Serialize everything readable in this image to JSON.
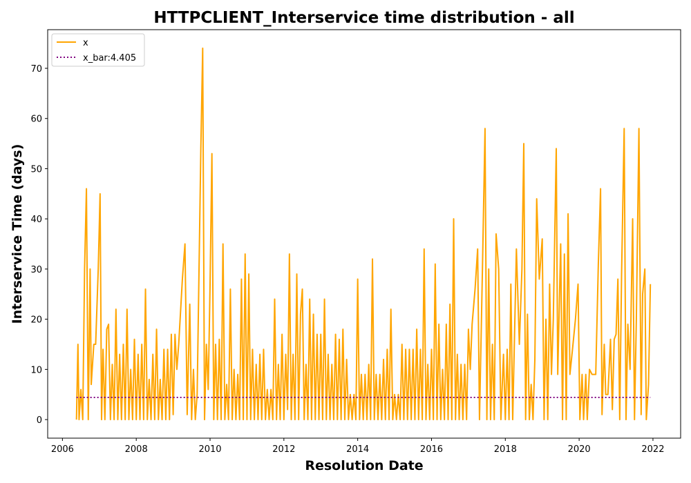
{
  "chart_data": {
    "type": "line",
    "title": "HTTPCLIENT_Interservice time distribution - all",
    "xlabel": "Resolution Date",
    "ylabel": "Interservice Time (days)",
    "xlim": [
      2005.6,
      2022.75
    ],
    "ylim": [
      -3.7,
      77.7
    ],
    "xticks": [
      2006,
      2008,
      2010,
      2012,
      2014,
      2016,
      2018,
      2020,
      2022
    ],
    "yticks": [
      0,
      10,
      20,
      30,
      40,
      50,
      60,
      70
    ],
    "grid": false,
    "legend_position": "upper-left",
    "series": [
      {
        "name": "x",
        "color": "#ffa500",
        "style": "solid",
        "points": [
          [
            2006.38,
            0
          ],
          [
            2006.42,
            15
          ],
          [
            2006.45,
            0
          ],
          [
            2006.5,
            6
          ],
          [
            2006.55,
            0
          ],
          [
            2006.6,
            30
          ],
          [
            2006.65,
            46
          ],
          [
            2006.7,
            0
          ],
          [
            2006.75,
            30
          ],
          [
            2006.78,
            7
          ],
          [
            2006.85,
            15
          ],
          [
            2006.9,
            15
          ],
          [
            2006.97,
            30
          ],
          [
            2007.02,
            45
          ],
          [
            2007.06,
            0
          ],
          [
            2007.1,
            14
          ],
          [
            2007.15,
            0
          ],
          [
            2007.2,
            18
          ],
          [
            2007.25,
            19
          ],
          [
            2007.3,
            0
          ],
          [
            2007.35,
            11
          ],
          [
            2007.4,
            0
          ],
          [
            2007.45,
            22
          ],
          [
            2007.5,
            0
          ],
          [
            2007.55,
            13
          ],
          [
            2007.6,
            0
          ],
          [
            2007.65,
            15
          ],
          [
            2007.7,
            0
          ],
          [
            2007.75,
            22
          ],
          [
            2007.8,
            0
          ],
          [
            2007.85,
            10
          ],
          [
            2007.9,
            0
          ],
          [
            2007.95,
            16
          ],
          [
            2008.0,
            0
          ],
          [
            2008.05,
            13
          ],
          [
            2008.1,
            0
          ],
          [
            2008.15,
            15
          ],
          [
            2008.2,
            0
          ],
          [
            2008.25,
            26
          ],
          [
            2008.3,
            0
          ],
          [
            2008.35,
            8
          ],
          [
            2008.4,
            0
          ],
          [
            2008.45,
            13
          ],
          [
            2008.5,
            0
          ],
          [
            2008.55,
            18
          ],
          [
            2008.6,
            0
          ],
          [
            2008.65,
            8
          ],
          [
            2008.7,
            0
          ],
          [
            2008.75,
            14
          ],
          [
            2008.8,
            0
          ],
          [
            2008.85,
            14
          ],
          [
            2008.9,
            0
          ],
          [
            2008.95,
            17
          ],
          [
            2009.0,
            1
          ],
          [
            2009.05,
            17
          ],
          [
            2009.1,
            10
          ],
          [
            2009.15,
            15
          ],
          [
            2009.25,
            28
          ],
          [
            2009.32,
            35
          ],
          [
            2009.38,
            1
          ],
          [
            2009.45,
            23
          ],
          [
            2009.5,
            0
          ],
          [
            2009.55,
            10
          ],
          [
            2009.6,
            0
          ],
          [
            2009.65,
            5
          ],
          [
            2009.75,
            54
          ],
          [
            2009.8,
            74
          ],
          [
            2009.85,
            0
          ],
          [
            2009.9,
            15
          ],
          [
            2009.95,
            6
          ],
          [
            2010.0,
            27
          ],
          [
            2010.05,
            53
          ],
          [
            2010.1,
            0
          ],
          [
            2010.15,
            15
          ],
          [
            2010.2,
            0
          ],
          [
            2010.25,
            16
          ],
          [
            2010.3,
            0
          ],
          [
            2010.35,
            35
          ],
          [
            2010.4,
            0
          ],
          [
            2010.45,
            7
          ],
          [
            2010.5,
            0
          ],
          [
            2010.55,
            26
          ],
          [
            2010.6,
            0
          ],
          [
            2010.65,
            10
          ],
          [
            2010.7,
            0
          ],
          [
            2010.75,
            9
          ],
          [
            2010.8,
            0
          ],
          [
            2010.85,
            28
          ],
          [
            2010.9,
            0
          ],
          [
            2010.95,
            33
          ],
          [
            2011.0,
            0
          ],
          [
            2011.05,
            29
          ],
          [
            2011.1,
            0
          ],
          [
            2011.15,
            14
          ],
          [
            2011.2,
            0
          ],
          [
            2011.25,
            11
          ],
          [
            2011.3,
            0
          ],
          [
            2011.35,
            13
          ],
          [
            2011.4,
            0
          ],
          [
            2011.45,
            14
          ],
          [
            2011.5,
            0
          ],
          [
            2011.55,
            6
          ],
          [
            2011.6,
            0
          ],
          [
            2011.65,
            6
          ],
          [
            2011.7,
            0
          ],
          [
            2011.75,
            24
          ],
          [
            2011.8,
            0
          ],
          [
            2011.85,
            11
          ],
          [
            2011.9,
            0
          ],
          [
            2011.95,
            17
          ],
          [
            2012.0,
            0
          ],
          [
            2012.05,
            13
          ],
          [
            2012.1,
            2
          ],
          [
            2012.15,
            33
          ],
          [
            2012.2,
            0
          ],
          [
            2012.25,
            13
          ],
          [
            2012.3,
            0
          ],
          [
            2012.35,
            29
          ],
          [
            2012.4,
            0
          ],
          [
            2012.45,
            21
          ],
          [
            2012.5,
            26
          ],
          [
            2012.55,
            0
          ],
          [
            2012.6,
            11
          ],
          [
            2012.65,
            0
          ],
          [
            2012.7,
            24
          ],
          [
            2012.75,
            0
          ],
          [
            2012.8,
            21
          ],
          [
            2012.85,
            0
          ],
          [
            2012.9,
            17
          ],
          [
            2012.95,
            0
          ],
          [
            2013.0,
            17
          ],
          [
            2013.05,
            0
          ],
          [
            2013.1,
            24
          ],
          [
            2013.15,
            0
          ],
          [
            2013.2,
            13
          ],
          [
            2013.25,
            0
          ],
          [
            2013.3,
            11
          ],
          [
            2013.35,
            0
          ],
          [
            2013.4,
            17
          ],
          [
            2013.45,
            0
          ],
          [
            2013.5,
            16
          ],
          [
            2013.55,
            0
          ],
          [
            2013.6,
            18
          ],
          [
            2013.65,
            0
          ],
          [
            2013.7,
            12
          ],
          [
            2013.75,
            0
          ],
          [
            2013.8,
            5
          ],
          [
            2013.85,
            0
          ],
          [
            2013.9,
            5
          ],
          [
            2013.95,
            0
          ],
          [
            2014.0,
            28
          ],
          [
            2014.05,
            0
          ],
          [
            2014.1,
            9
          ],
          [
            2014.15,
            0
          ],
          [
            2014.2,
            9
          ],
          [
            2014.25,
            0
          ],
          [
            2014.3,
            11
          ],
          [
            2014.35,
            0
          ],
          [
            2014.4,
            32
          ],
          [
            2014.45,
            0
          ],
          [
            2014.5,
            9
          ],
          [
            2014.55,
            0
          ],
          [
            2014.6,
            9
          ],
          [
            2014.65,
            0
          ],
          [
            2014.7,
            12
          ],
          [
            2014.75,
            0
          ],
          [
            2014.8,
            14
          ],
          [
            2014.85,
            0
          ],
          [
            2014.9,
            22
          ],
          [
            2014.95,
            0
          ],
          [
            2015.0,
            5
          ],
          [
            2015.05,
            0
          ],
          [
            2015.1,
            5
          ],
          [
            2015.15,
            0
          ],
          [
            2015.2,
            15
          ],
          [
            2015.25,
            0
          ],
          [
            2015.3,
            14
          ],
          [
            2015.35,
            0
          ],
          [
            2015.4,
            14
          ],
          [
            2015.45,
            0
          ],
          [
            2015.5,
            14
          ],
          [
            2015.55,
            0
          ],
          [
            2015.6,
            18
          ],
          [
            2015.65,
            0
          ],
          [
            2015.7,
            14
          ],
          [
            2015.75,
            0
          ],
          [
            2015.8,
            34
          ],
          [
            2015.85,
            0
          ],
          [
            2015.9,
            11
          ],
          [
            2015.95,
            0
          ],
          [
            2016.0,
            14
          ],
          [
            2016.05,
            0
          ],
          [
            2016.1,
            31
          ],
          [
            2016.15,
            0
          ],
          [
            2016.2,
            19
          ],
          [
            2016.25,
            0
          ],
          [
            2016.3,
            10
          ],
          [
            2016.35,
            0
          ],
          [
            2016.4,
            19
          ],
          [
            2016.45,
            0
          ],
          [
            2016.5,
            23
          ],
          [
            2016.55,
            0
          ],
          [
            2016.6,
            40
          ],
          [
            2016.65,
            0
          ],
          [
            2016.7,
            13
          ],
          [
            2016.75,
            0
          ],
          [
            2016.8,
            11
          ],
          [
            2016.85,
            0
          ],
          [
            2016.9,
            11
          ],
          [
            2016.95,
            0
          ],
          [
            2017.0,
            18
          ],
          [
            2017.05,
            10
          ],
          [
            2017.1,
            19
          ],
          [
            2017.18,
            26
          ],
          [
            2017.25,
            34
          ],
          [
            2017.3,
            0
          ],
          [
            2017.38,
            30
          ],
          [
            2017.45,
            58
          ],
          [
            2017.5,
            0
          ],
          [
            2017.55,
            30
          ],
          [
            2017.6,
            0
          ],
          [
            2017.65,
            15
          ],
          [
            2017.7,
            0
          ],
          [
            2017.75,
            37
          ],
          [
            2017.82,
            30
          ],
          [
            2017.88,
            0
          ],
          [
            2017.95,
            13
          ],
          [
            2018.0,
            0
          ],
          [
            2018.05,
            14
          ],
          [
            2018.1,
            0
          ],
          [
            2018.15,
            27
          ],
          [
            2018.2,
            0
          ],
          [
            2018.25,
            17
          ],
          [
            2018.3,
            34
          ],
          [
            2018.38,
            15
          ],
          [
            2018.45,
            30
          ],
          [
            2018.5,
            55
          ],
          [
            2018.55,
            0
          ],
          [
            2018.6,
            21
          ],
          [
            2018.65,
            0
          ],
          [
            2018.7,
            7
          ],
          [
            2018.75,
            0
          ],
          [
            2018.8,
            12
          ],
          [
            2018.85,
            44
          ],
          [
            2018.92,
            28
          ],
          [
            2019.0,
            36
          ],
          [
            2019.05,
            0
          ],
          [
            2019.1,
            20
          ],
          [
            2019.15,
            0
          ],
          [
            2019.2,
            27
          ],
          [
            2019.25,
            9
          ],
          [
            2019.3,
            20
          ],
          [
            2019.38,
            54
          ],
          [
            2019.42,
            9
          ],
          [
            2019.5,
            35
          ],
          [
            2019.55,
            0
          ],
          [
            2019.6,
            33
          ],
          [
            2019.65,
            0
          ],
          [
            2019.7,
            41
          ],
          [
            2019.75,
            9
          ],
          [
            2019.82,
            14
          ],
          [
            2019.9,
            20
          ],
          [
            2019.97,
            27
          ],
          [
            2020.02,
            0
          ],
          [
            2020.08,
            9
          ],
          [
            2020.12,
            0
          ],
          [
            2020.18,
            9
          ],
          [
            2020.22,
            0
          ],
          [
            2020.28,
            10
          ],
          [
            2020.35,
            9
          ],
          [
            2020.45,
            9
          ],
          [
            2020.52,
            31
          ],
          [
            2020.58,
            46
          ],
          [
            2020.62,
            1
          ],
          [
            2020.68,
            15
          ],
          [
            2020.72,
            5
          ],
          [
            2020.78,
            5
          ],
          [
            2020.85,
            16
          ],
          [
            2020.9,
            2
          ],
          [
            2020.95,
            16
          ],
          [
            2021.0,
            17
          ],
          [
            2021.05,
            28
          ],
          [
            2021.1,
            0
          ],
          [
            2021.15,
            29
          ],
          [
            2021.22,
            58
          ],
          [
            2021.27,
            0
          ],
          [
            2021.32,
            19
          ],
          [
            2021.38,
            10
          ],
          [
            2021.45,
            40
          ],
          [
            2021.5,
            0
          ],
          [
            2021.55,
            20
          ],
          [
            2021.62,
            58
          ],
          [
            2021.68,
            1
          ],
          [
            2021.72,
            25
          ],
          [
            2021.78,
            30
          ],
          [
            2021.82,
            0
          ],
          [
            2021.88,
            7
          ],
          [
            2021.93,
            27
          ]
        ]
      },
      {
        "name": "x_bar:4.405",
        "color": "#800080",
        "style": "dotted",
        "points": [
          [
            2006.38,
            4.405
          ],
          [
            2021.93,
            4.405
          ]
        ]
      }
    ]
  }
}
